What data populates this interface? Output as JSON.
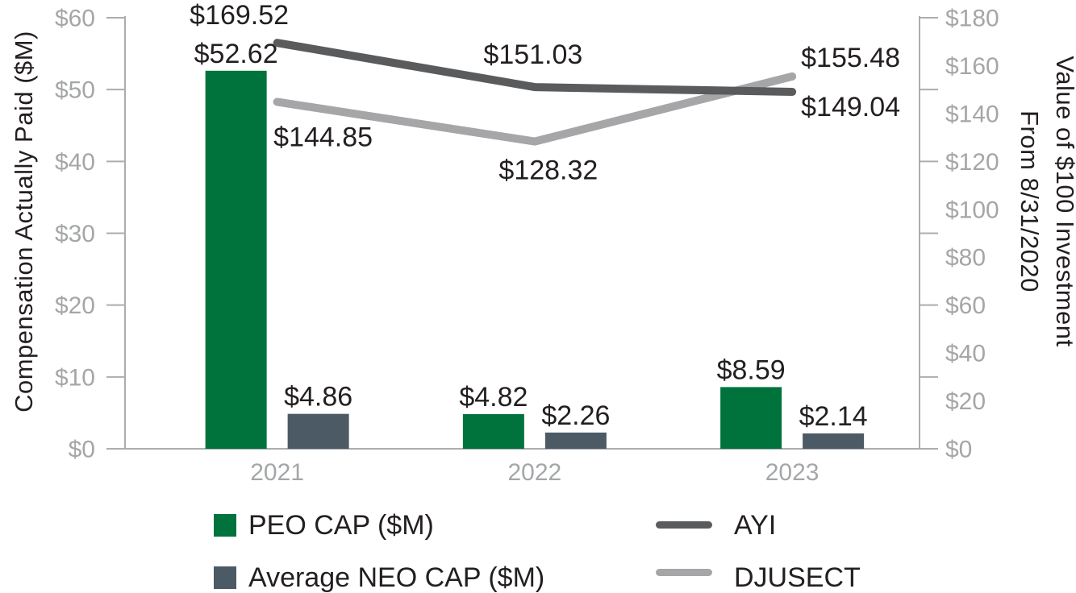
{
  "figure": {
    "background": "#FFFFFF",
    "text_color": "#231F20",
    "axis_line_color": "#ABADAF",
    "tick_label_color": "#A4A6A8"
  },
  "chart_data": {
    "type": "combo-bar-line",
    "categories": [
      "2021",
      "2022",
      "2023"
    ],
    "bar_series": [
      {
        "name": "PEO CAP ($M)",
        "color": "#00733C",
        "axis": "left",
        "values": [
          52.62,
          4.82,
          8.59
        ],
        "labels": [
          "$52.62",
          "$4.82",
          "$8.59"
        ]
      },
      {
        "name": "Average NEO CAP ($M)",
        "color": "#4C5A66",
        "axis": "left",
        "values": [
          4.86,
          2.26,
          2.14
        ],
        "labels": [
          "$4.86",
          "$2.26",
          "$2.14"
        ]
      }
    ],
    "line_series": [
      {
        "name": "AYI",
        "color": "#595B5D",
        "axis": "right",
        "values": [
          169.52,
          151.03,
          149.04
        ],
        "labels": [
          "$169.52",
          "$151.03",
          "$149.04"
        ]
      },
      {
        "name": "DJUSECT",
        "color": "#A6A6A8",
        "axis": "right",
        "values": [
          144.85,
          128.32,
          155.48
        ],
        "labels": [
          "$144.85",
          "$128.32",
          "$155.48"
        ]
      }
    ],
    "left_axis": {
      "title": "Compensation Actually Paid ($M)",
      "min": 0,
      "max": 60,
      "label_step": 10,
      "tick_step": 10,
      "tick_labels": [
        "$0",
        "$10",
        "$20",
        "$30",
        "$40",
        "$50",
        "$60"
      ]
    },
    "right_axis": {
      "title_line1": "Value of $100 Investment",
      "title_line2": "From 8/31/2020",
      "min": 0,
      "max": 180,
      "label_step": 20,
      "tick_step": 30,
      "tick_labels": [
        "$0",
        "$20",
        "$40",
        "$60",
        "$80",
        "$100",
        "$120",
        "$140",
        "$160",
        "$180"
      ]
    },
    "x_axis": {
      "labels": [
        "2021",
        "2022",
        "2023"
      ]
    },
    "grid": false,
    "legend_position": "bottom"
  },
  "legend": {
    "items": [
      {
        "label": "PEO CAP ($M)",
        "swatch": "square",
        "color": "#00733C"
      },
      {
        "label": "Average NEO CAP ($M)",
        "swatch": "square",
        "color": "#4C5A66"
      },
      {
        "label": "AYI",
        "swatch": "line",
        "color": "#595B5D"
      },
      {
        "label": "DJUSECT",
        "swatch": "line",
        "color": "#A6A6A8"
      }
    ]
  }
}
